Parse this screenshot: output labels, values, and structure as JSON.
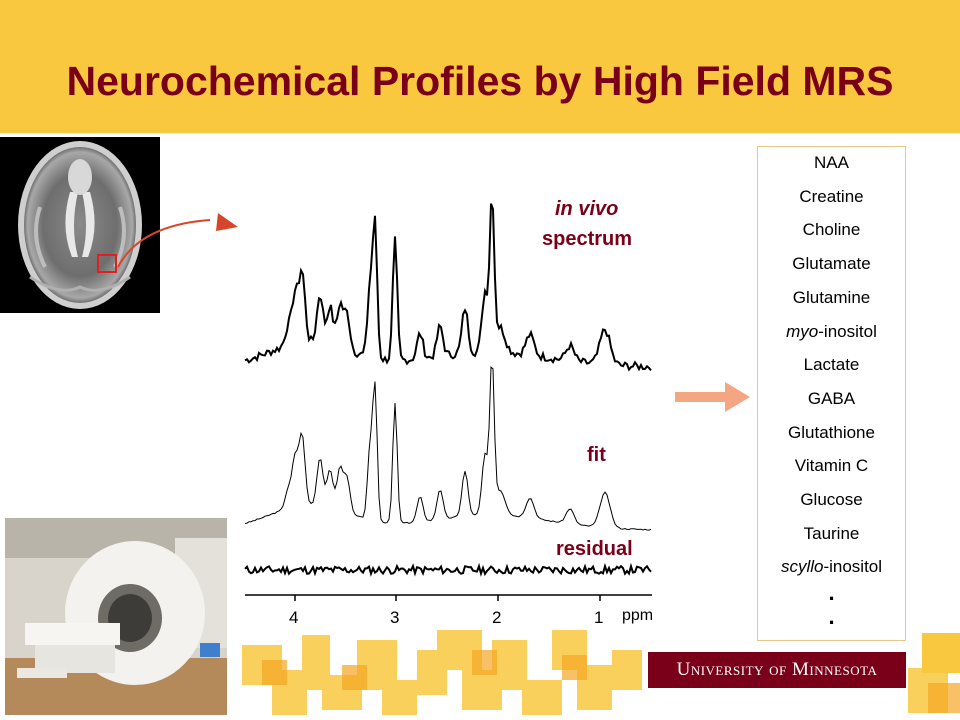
{
  "title": "Neurochemical Profiles by High Field MRS",
  "colors": {
    "banner": "#f9c83f",
    "maroon": "#7a0019",
    "arrow": "#f4a582",
    "pointer": "#d9452b"
  },
  "spectrum_labels": {
    "in_vivo": "in vivo",
    "spectrum": "spectrum",
    "fit": "fit",
    "residual": "residual"
  },
  "axis": {
    "ticks": [
      "4",
      "3",
      "2",
      "1"
    ],
    "unit": "ppm"
  },
  "metabolites": [
    {
      "prefix": "",
      "name": "NAA"
    },
    {
      "prefix": "",
      "name": "Creatine"
    },
    {
      "prefix": "",
      "name": "Choline"
    },
    {
      "prefix": "",
      "name": "Glutamate"
    },
    {
      "prefix": "",
      "name": "Glutamine"
    },
    {
      "prefix": "myo",
      "name": "-inositol"
    },
    {
      "prefix": "",
      "name": "Lactate"
    },
    {
      "prefix": "",
      "name": "GABA"
    },
    {
      "prefix": "",
      "name": "Glutathione"
    },
    {
      "prefix": "",
      "name": "Vitamin C"
    },
    {
      "prefix": "",
      "name": "Glucose"
    },
    {
      "prefix": "",
      "name": "Taurine"
    },
    {
      "prefix": "scyllo",
      "name": "-inositol"
    }
  ],
  "ellipsis": [
    ".",
    "."
  ],
  "logo": "University of Minnesota"
}
